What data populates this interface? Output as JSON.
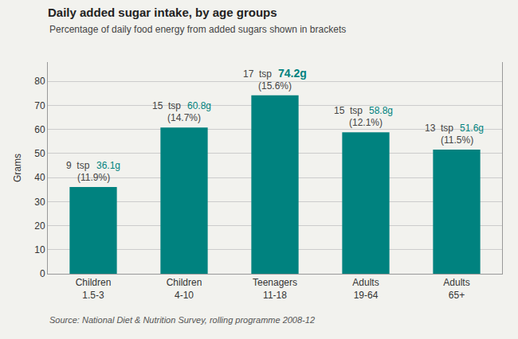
{
  "chart_data": {
    "type": "bar",
    "title": "Daily added sugar intake, by age groups",
    "subtitle": "Percentage of daily food energy from added sugars shown in brackets",
    "ylabel": "Grams",
    "source": "Source: National Diet & Nutrition Survey, rolling programme 2008-12",
    "categories": [
      "Children\n1.5-3",
      "Children\n4-10",
      "Teenagers\n11-18",
      "Adults\n19-64",
      "Adults\n65+"
    ],
    "values": [
      36.1,
      60.8,
      74.2,
      58.8,
      51.6
    ],
    "value_labels": [
      "36.1g",
      "60.8g",
      "74.2g",
      "58.8g",
      "51.6g"
    ],
    "data_labels": true,
    "tsp_labels": [
      "9  tsp",
      "15  tsp",
      "17  tsp",
      "15  tsp",
      "13  tsp"
    ],
    "percent_labels": [
      "(11.9%)",
      "(14.7%)",
      "(15.6%)",
      "(12.1%)",
      "(11.5%)"
    ],
    "color": "#00827F",
    "ylim": [
      0,
      88
    ],
    "yticks": [
      0,
      10,
      20,
      30,
      40,
      50,
      60,
      70,
      80
    ],
    "grid": true
  }
}
